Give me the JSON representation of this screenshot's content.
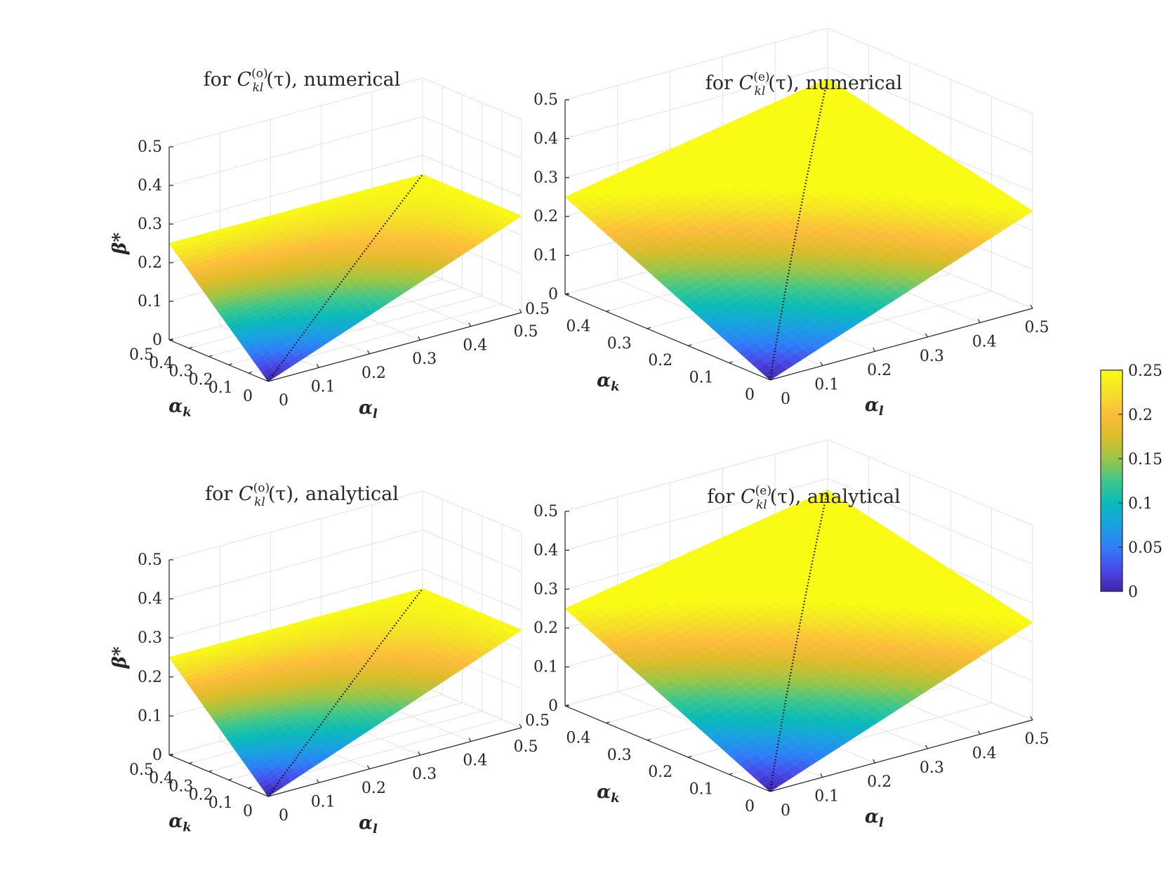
{
  "figure": {
    "colormap": [
      "#3e26a8",
      "#4a49e8",
      "#2f7ff8",
      "#1aa2e0",
      "#0abbb8",
      "#3ec78d",
      "#9bc648",
      "#dcbd2a",
      "#fdbd3c",
      "#f5e128",
      "#f9fb15"
    ],
    "line_color": "#000000"
  },
  "chart_data": [
    {
      "type": "surface",
      "title_prefix": "for ",
      "title_symbol": "C",
      "title_superscript": "(o)",
      "title_subscript": "kl",
      "title_suffix": "(τ), numerical",
      "xlabel": "α_k",
      "ylabel": "α_l",
      "zlabel": "β*",
      "xlim": [
        0,
        0.5
      ],
      "ylim": [
        0,
        0.5
      ],
      "zlim": [
        0,
        0.5
      ],
      "x_ticks": [
        "0",
        "0.1",
        "0.2",
        "0.3",
        "0.4",
        "0.5"
      ],
      "y_ticks": [
        "0",
        "0.1",
        "0.2",
        "0.3",
        "0.4",
        "0.5"
      ],
      "z_ticks": [
        "0",
        "0.1",
        "0.2",
        "0.3",
        "0.4",
        "0.5"
      ],
      "surface_z": {
        "corner_00": 0,
        "corner_k_max": 0.25,
        "corner_l_max": 0.25,
        "corner_both_max": 0.25
      },
      "diagonal_line_z": {
        "start": 0,
        "end": 0.25
      },
      "grid": true
    },
    {
      "type": "surface",
      "title_prefix": "for ",
      "title_symbol": "C",
      "title_superscript": "(e)",
      "title_subscript": "kl",
      "title_suffix": "(τ), numerical",
      "xlabel": "α_k",
      "ylabel": "α_l",
      "zlabel": "",
      "xlim": [
        0,
        0.5
      ],
      "ylim": [
        0,
        0.5
      ],
      "zlim": [
        0,
        0.5
      ],
      "x_ticks": [
        "0",
        "0.1",
        "0.2",
        "0.3",
        "0.4",
        "0.5"
      ],
      "y_ticks": [
        "0",
        "0.1",
        "0.2",
        "0.3",
        "0.4",
        "0.5"
      ],
      "z_ticks": [
        "0",
        "0.1",
        "0.2",
        "0.3",
        "0.4",
        "0.5"
      ],
      "surface_z": {
        "corner_00": 0,
        "corner_k_max": 0.25,
        "corner_l_max": 0.25,
        "corner_both_max": 0.37
      },
      "diagonal_line_z": {
        "start": 0,
        "end": 0.37
      },
      "grid": true
    },
    {
      "type": "surface",
      "title_prefix": "for ",
      "title_symbol": "C",
      "title_superscript": "(o)",
      "title_subscript": "kl",
      "title_suffix": "(τ), analytical",
      "xlabel": "α_k",
      "ylabel": "α_l",
      "zlabel": "β*",
      "xlim": [
        0,
        0.5
      ],
      "ylim": [
        0,
        0.5
      ],
      "zlim": [
        0,
        0.5
      ],
      "x_ticks": [
        "0",
        "0.1",
        "0.2",
        "0.3",
        "0.4",
        "0.5"
      ],
      "y_ticks": [
        "0",
        "0.1",
        "0.2",
        "0.3",
        "0.4",
        "0.5"
      ],
      "z_ticks": [
        "0",
        "0.1",
        "0.2",
        "0.3",
        "0.4",
        "0.5"
      ],
      "surface_z": {
        "corner_00": 0,
        "corner_k_max": 0.25,
        "corner_l_max": 0.25,
        "corner_both_max": 0.25
      },
      "diagonal_line_z": {
        "start": 0,
        "end": 0.25
      },
      "grid": true
    },
    {
      "type": "surface",
      "title_prefix": "for ",
      "title_symbol": "C",
      "title_superscript": "(e)",
      "title_subscript": "kl",
      "title_suffix": "(τ), analytical",
      "xlabel": "α_k",
      "ylabel": "α_l",
      "zlabel": "",
      "xlim": [
        0,
        0.5
      ],
      "ylim": [
        0,
        0.5
      ],
      "zlim": [
        0,
        0.5
      ],
      "x_ticks": [
        "0",
        "0.1",
        "0.2",
        "0.3",
        "0.4",
        "0.5"
      ],
      "y_ticks": [
        "0",
        "0.1",
        "0.2",
        "0.3",
        "0.4",
        "0.5"
      ],
      "z_ticks": [
        "0",
        "0.1",
        "0.2",
        "0.3",
        "0.4",
        "0.5"
      ],
      "surface_z": {
        "corner_00": 0,
        "corner_k_max": 0.25,
        "corner_l_max": 0.25,
        "corner_both_max": 0.37
      },
      "diagonal_line_z": {
        "start": 0,
        "end": 0.37
      },
      "grid": true
    }
  ],
  "colorbar": {
    "range": [
      0,
      0.25
    ],
    "ticks": [
      "0",
      "0.05",
      "0.1",
      "0.15",
      "0.2",
      "0.25"
    ]
  }
}
